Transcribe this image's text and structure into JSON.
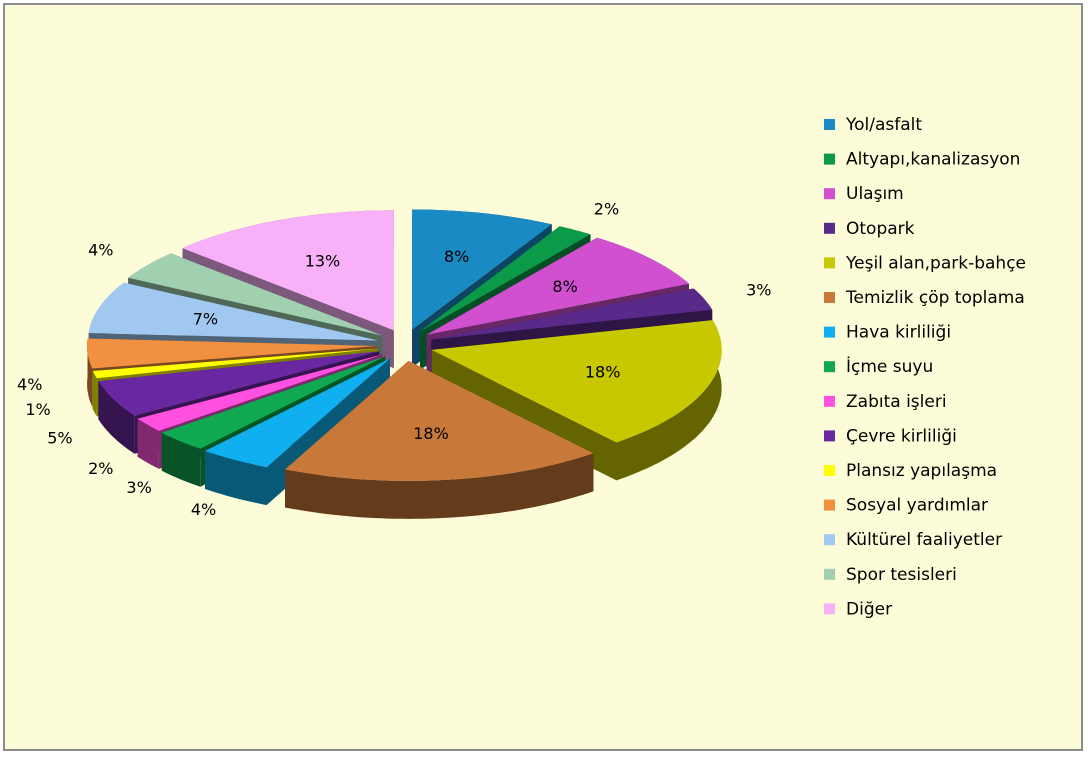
{
  "chart_data": {
    "type": "pie",
    "categories": [
      "Yol/asfalt",
      "Altyapı,kanalizasyon",
      "Ulaşım",
      "Otopark",
      "Yeşil alan,park-bahçe",
      "Temizlik çöp toplama",
      "Hava kirliliği",
      "İçme suyu",
      "Zabıta işleri",
      "Çevre kirliliği",
      "Plansız yapılaşma",
      "Sosyal yardımlar",
      "Kültürel faaliyetler",
      "Spor tesisleri",
      "Diğer"
    ],
    "values": [
      8,
      2,
      8,
      3,
      18,
      18,
      4,
      3,
      2,
      5,
      1,
      4,
      7,
      4,
      13
    ],
    "value_labels": [
      "8%",
      "2%",
      "8%",
      "3%",
      "18%",
      "18%",
      "4%",
      "3%",
      "2%",
      "5%",
      "1%",
      "4%",
      "7%",
      "4%",
      "13%"
    ],
    "colors": [
      "#1a8ac4",
      "#0a9a4a",
      "#d050d0",
      "#5a2a8a",
      "#c8c800",
      "#c87838",
      "#10b0f0",
      "#10a850",
      "#ff50e0",
      "#6a28a0",
      "#ffff00",
      "#f09040",
      "#a0c8f0",
      "#a0d0b0",
      "#f8b0f8"
    ],
    "legend": "right"
  }
}
